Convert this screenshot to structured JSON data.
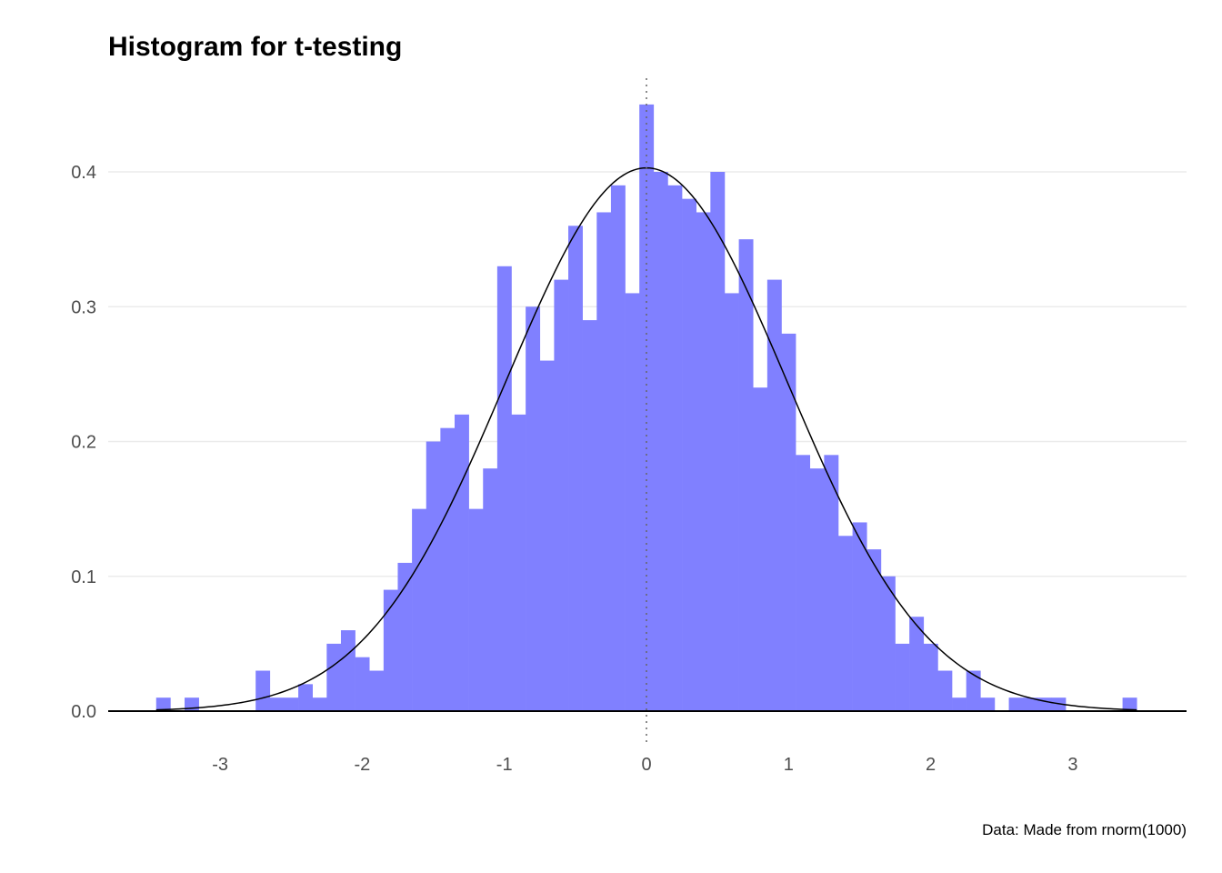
{
  "chart_data": {
    "type": "bar",
    "title": "Histogram for t-testing",
    "caption": "Data: Made from rnorm(1000)",
    "xlabel": "",
    "ylabel": "",
    "xlim": [
      -3.8,
      3.8
    ],
    "ylim": [
      0,
      0.45
    ],
    "x_ticks": [
      -3,
      -2,
      -1,
      0,
      1,
      2,
      3
    ],
    "x_tick_labels": [
      "-3",
      "-2",
      "-1",
      "0",
      "1",
      "2",
      "3"
    ],
    "y_ticks": [
      0,
      0.1,
      0.2,
      0.3,
      0.4
    ],
    "y_tick_labels": [
      "0.0",
      "0.1",
      "0.2",
      "0.3",
      "0.4"
    ],
    "grid": "horizontal major",
    "legend": "none",
    "bin_width": 0.1,
    "bins_start": [
      -3.45,
      -3.35,
      -3.25,
      -3.15,
      -3.05,
      -2.95,
      -2.85,
      -2.75,
      -2.65,
      -2.55,
      -2.45,
      -2.35,
      -2.25,
      -2.15,
      -2.05,
      -1.95,
      -1.85,
      -1.75,
      -1.65,
      -1.55,
      -1.45,
      -1.35,
      -1.25,
      -1.15,
      -1.05,
      -0.95,
      -0.85,
      -0.75,
      -0.65,
      -0.55,
      -0.45,
      -0.35,
      -0.25,
      -0.15,
      -0.05,
      0.05,
      0.15,
      0.25,
      0.35,
      0.45,
      0.55,
      0.65,
      0.75,
      0.85,
      0.95,
      1.05,
      1.15,
      1.25,
      1.35,
      1.45,
      1.55,
      1.65,
      1.75,
      1.85,
      1.95,
      2.05,
      2.15,
      2.25,
      2.35,
      2.45,
      2.55,
      2.65,
      2.75,
      2.85,
      2.95,
      3.05,
      3.15,
      3.25,
      3.35
    ],
    "density": [
      0.01,
      0.0,
      0.01,
      0.0,
      0.0,
      0.0,
      0.0,
      0.03,
      0.01,
      0.01,
      0.02,
      0.01,
      0.05,
      0.06,
      0.04,
      0.03,
      0.09,
      0.11,
      0.15,
      0.2,
      0.21,
      0.22,
      0.15,
      0.18,
      0.33,
      0.22,
      0.3,
      0.26,
      0.32,
      0.36,
      0.29,
      0.37,
      0.39,
      0.31,
      0.45,
      0.4,
      0.39,
      0.38,
      0.37,
      0.4,
      0.31,
      0.35,
      0.24,
      0.32,
      0.28,
      0.19,
      0.18,
      0.19,
      0.13,
      0.14,
      0.12,
      0.1,
      0.05,
      0.07,
      0.05,
      0.03,
      0.01,
      0.03,
      0.01,
      0.0,
      0.01,
      0.01,
      0.01,
      0.01,
      0.0,
      0.0,
      0.0,
      0.0,
      0.01
    ],
    "bar_color": "#8080ff",
    "curve": {
      "type": "normal density",
      "mean": 0,
      "sd": 0.99,
      "x_from": -3.45,
      "x_to": 3.45,
      "color": "#000000"
    },
    "vline": {
      "x": 0,
      "style": "dotted",
      "color": "#666666"
    }
  }
}
